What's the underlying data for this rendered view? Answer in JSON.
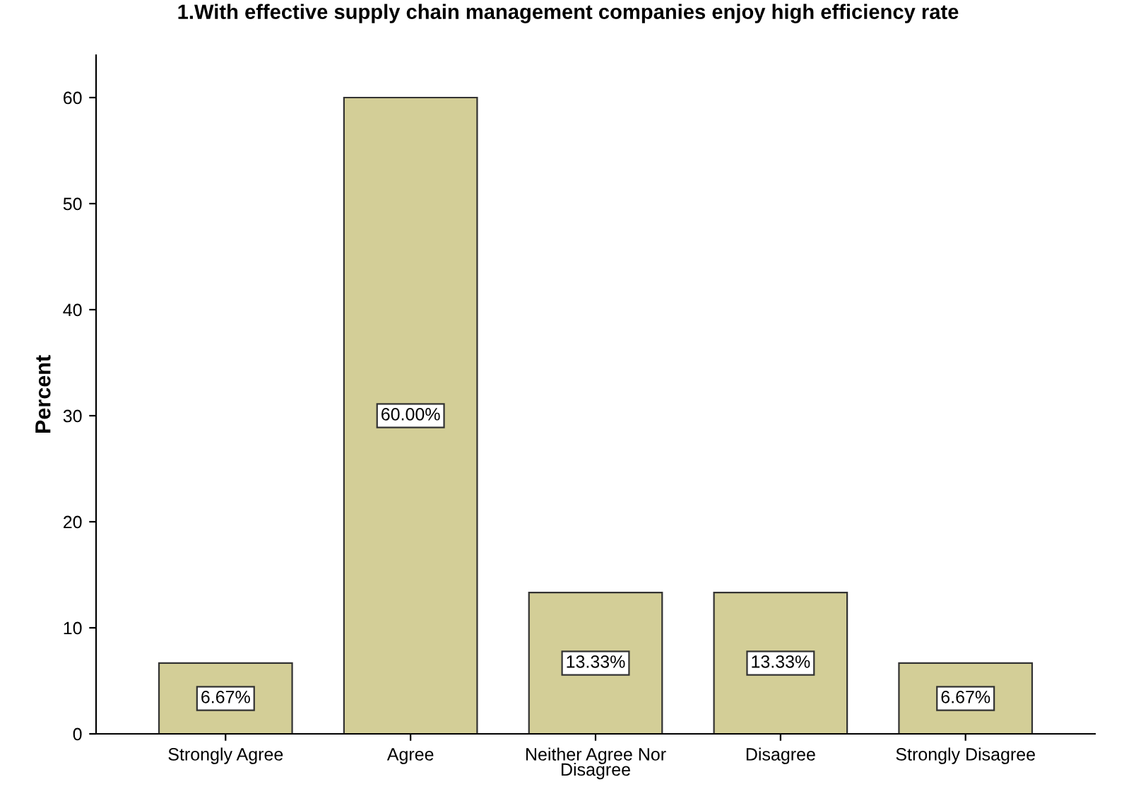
{
  "chart_data": {
    "type": "bar",
    "title": "1.With effective supply chain management companies enjoy high efficiency rate",
    "ylabel": "Percent",
    "categories": [
      "Strongly Agree",
      "Agree",
      "Neither Agree Nor\nDisagree",
      "Disagree",
      "Strongly Disagree"
    ],
    "values": [
      6.67,
      60.0,
      13.33,
      13.33,
      6.67
    ],
    "value_labels": [
      "6.67%",
      "60.00%",
      "13.33%",
      "13.33%",
      "6.67%"
    ],
    "color": "#d3ce97",
    "ylim": [
      0,
      64
    ],
    "yticks": [
      0,
      10,
      20,
      30,
      40,
      50,
      60
    ],
    "grid": false
  }
}
